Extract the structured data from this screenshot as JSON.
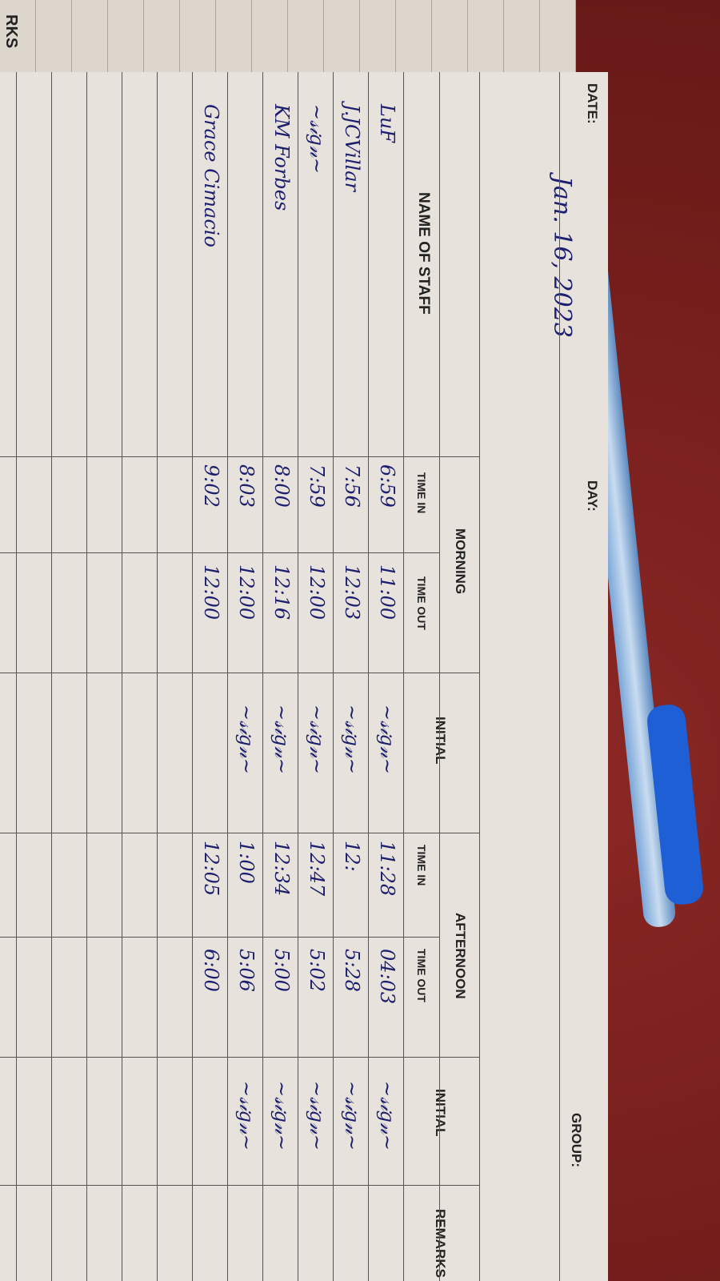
{
  "previous_page": {
    "header_fragment": "RKS"
  },
  "sheet": {
    "date_label": "DATE:",
    "date_value": "Jan. 16, 2023",
    "day_label": "DAY:",
    "group_label": "GROUP:",
    "headers": {
      "name": "NAME OF STAFF",
      "morning": "MORNING",
      "afternoon": "AFTERNOON",
      "time_in": "TIME IN",
      "time_out": "TIME OUT",
      "initial": "INITIAL",
      "remarks": "REMARKS"
    },
    "rows": [
      {
        "name": "LuF",
        "am_in": "6:59",
        "am_out": "11:00",
        "am_initial": "signature",
        "pm_in": "11:28",
        "pm_out": "04:03",
        "pm_initial": "signature"
      },
      {
        "name": "J.JCVillar",
        "am_in": "7:56",
        "am_out": "12:03",
        "am_initial": "signature",
        "pm_in": "12:",
        "pm_out": "5:28",
        "pm_initial": "signature"
      },
      {
        "name": "signature",
        "am_in": "7:59",
        "am_out": "12:00",
        "am_initial": "signature",
        "pm_in": "12:47",
        "pm_out": "5:02",
        "pm_initial": "signature"
      },
      {
        "name": "KM Forbes",
        "am_in": "8:00",
        "am_out": "12:16",
        "am_initial": "signature",
        "pm_in": "12:34",
        "pm_out": "5:00",
        "pm_initial": "signature"
      },
      {
        "name": "",
        "am_in": "8:03",
        "am_out": "12:00",
        "am_initial": "signature",
        "pm_in": "1:00",
        "pm_out": "5:06",
        "pm_initial": "signature"
      },
      {
        "name": "Grace Cimacio",
        "am_in": "9:02",
        "am_out": "12:00",
        "am_initial": "",
        "pm_in": "12:05",
        "pm_out": "6:00",
        "pm_initial": ""
      }
    ]
  },
  "colors": {
    "ink": "#1d1f6e",
    "paper": "#e7e3dc",
    "table": "#7a1f1c"
  }
}
